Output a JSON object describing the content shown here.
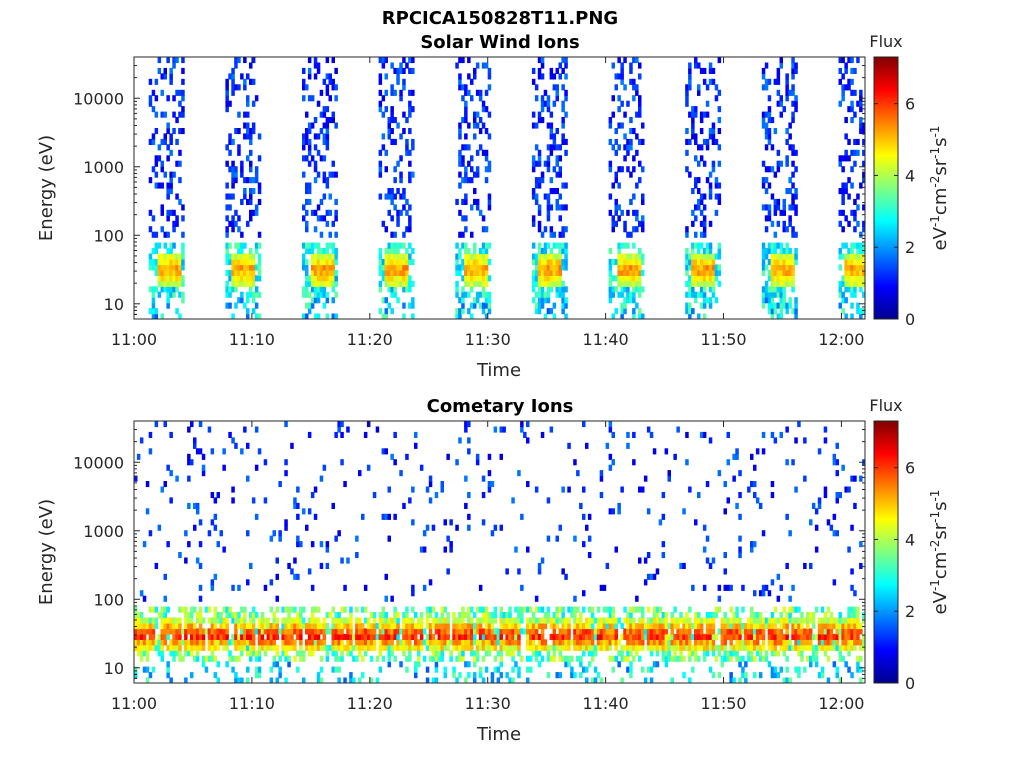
{
  "figure_title": "RPCICA150828T11.PNG",
  "colors": {
    "colormap": [
      "#00008f",
      "#0000ff",
      "#0080ff",
      "#00ffff",
      "#80ff80",
      "#ffff00",
      "#ff8000",
      "#ff0000",
      "#800000"
    ]
  },
  "chart_data": [
    {
      "type": "heatmap",
      "title": "Solar Wind Ions",
      "xlabel": "Time",
      "ylabel": "Energy (eV)",
      "x_ticks": [
        "11:00",
        "11:10",
        "11:20",
        "11:30",
        "11:40",
        "11:50",
        "12:00"
      ],
      "x_tick_minutes": [
        0,
        10,
        20,
        30,
        40,
        50,
        60
      ],
      "xlim_minutes": [
        0,
        62
      ],
      "y_scale": "log",
      "y_ticks": [
        "10",
        "100",
        "1000",
        "10000"
      ],
      "y_tick_values": [
        10,
        100,
        1000,
        10000
      ],
      "ylim": [
        6,
        40000
      ],
      "colorbar": {
        "label": "Flux",
        "unit": "eV-1cm-2sr-1s-1",
        "range": [
          0,
          7.3
        ],
        "ticks": [
          "0",
          "2",
          "4",
          "6"
        ],
        "tick_values": [
          0,
          2,
          4,
          6
        ]
      },
      "sweep_start_minutes": [
        1.2,
        7.6,
        14.2,
        20.6,
        27.2,
        33.6,
        40.2,
        46.6,
        53.2,
        59.6
      ],
      "peak_energy_eV": 32,
      "peak_flux": 5.0
    },
    {
      "type": "heatmap",
      "title": "Cometary Ions",
      "xlabel": "Time",
      "ylabel": "Energy (eV)",
      "x_ticks": [
        "11:00",
        "11:10",
        "11:20",
        "11:30",
        "11:40",
        "11:50",
        "12:00"
      ],
      "x_tick_minutes": [
        0,
        10,
        20,
        30,
        40,
        50,
        60
      ],
      "xlim_minutes": [
        0,
        62
      ],
      "y_scale": "log",
      "y_ticks": [
        "10",
        "100",
        "1000",
        "10000"
      ],
      "y_tick_values": [
        10,
        100,
        1000,
        10000
      ],
      "ylim": [
        6,
        40000
      ],
      "colorbar": {
        "label": "Flux",
        "unit": "eV-1cm-2sr-1s-1",
        "range": [
          0,
          7.3
        ],
        "ticks": [
          "0",
          "2",
          "4",
          "6"
        ],
        "tick_values": [
          0,
          2,
          4,
          6
        ]
      },
      "peak_energy_eV": 30,
      "peak_flux": 6.8
    }
  ]
}
